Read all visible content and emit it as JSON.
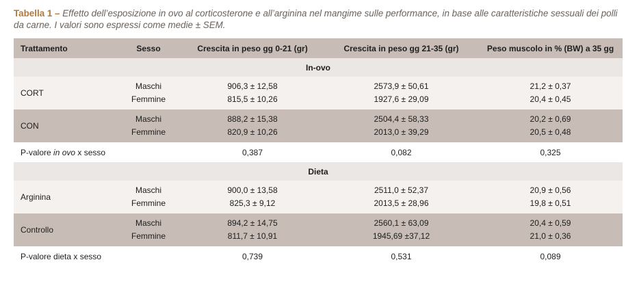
{
  "caption": {
    "label": "Tabella 1 –",
    "text": " Effetto dell’esposizione in ovo al corticosterone e all’arginina nel mangime sulle performance, in base alle caratteristiche sessuali dei polli da carne. I valori sono espressi come medie ± SEM."
  },
  "headers": {
    "trattamento": "Trattamento",
    "sesso": "Sesso",
    "crescita_0_21": "Crescita in peso gg 0-21 (gr)",
    "crescita_21_35": "Crescita in peso gg 21-35 (gr)",
    "peso_muscolo": "Peso muscolo in % (BW) a 35 gg"
  },
  "sections": {
    "in_ovo": "In-ovo",
    "dieta": "Dieta"
  },
  "rows": {
    "cort": {
      "name": "CORT",
      "sex_m": "Maschi",
      "sex_f": "Femmine",
      "g021_m": "906,3 ± 12,58",
      "g021_f": "815,5 ± 10,26",
      "g2135_m": "2573,9 ± 50,61",
      "g2135_f": "1927,6 ± 29,09",
      "mus_m": "21,2 ± 0,37",
      "mus_f": "20,4 ± 0,45"
    },
    "con": {
      "name": "CON",
      "sex_m": "Maschi",
      "sex_f": "Femmine",
      "g021_m": "888,2 ± 15,38",
      "g021_f": "820,9 ± 10,26",
      "g2135_m": "2504,4 ± 58,33",
      "g2135_f": "2013,0 ± 39,29",
      "mus_m": "20,2 ± 0,69",
      "mus_f": "20,5 ± 0,48"
    },
    "pv_inovo": {
      "label_a": "P-valore ",
      "label_em": "in ovo",
      "label_b": " x sesso",
      "g021": "0,387",
      "g2135": "0,082",
      "mus": "0,325"
    },
    "arginina": {
      "name": "Arginina",
      "sex_m": "Maschi",
      "sex_f": "Femmine",
      "g021_m": "900,0 ± 13,58",
      "g021_f": "825,3 ± 9,12",
      "g2135_m": "2511,0 ± 52,37",
      "g2135_f": "2013,5 ± 28,96",
      "mus_m": "20,9 ± 0,56",
      "mus_f": "19,8 ± 0,51"
    },
    "controllo": {
      "name": "Controllo",
      "sex_m": "Maschi",
      "sex_f": "Femmine",
      "g021_m": "894,2 ± 14,75",
      "g021_f": "811,7 ± 10,91",
      "g2135_m": "2560,1 ± 63,09",
      "g2135_f": "1945,69 ±37,12",
      "mus_m": "20,4 ± 0,59",
      "mus_f": "21,0 ± 0,36"
    },
    "pv_dieta": {
      "label": "P-valore dieta x sesso",
      "g021": "0,739",
      "g2135": "0,531",
      "mus": "0,089"
    }
  },
  "colors": {
    "header_bg": "#c7bcb6",
    "section_bg": "#ebe7e4",
    "light_row_bg": "#f4f1ef",
    "caption_label": "#b07a3e",
    "caption_text": "#6a625c"
  }
}
